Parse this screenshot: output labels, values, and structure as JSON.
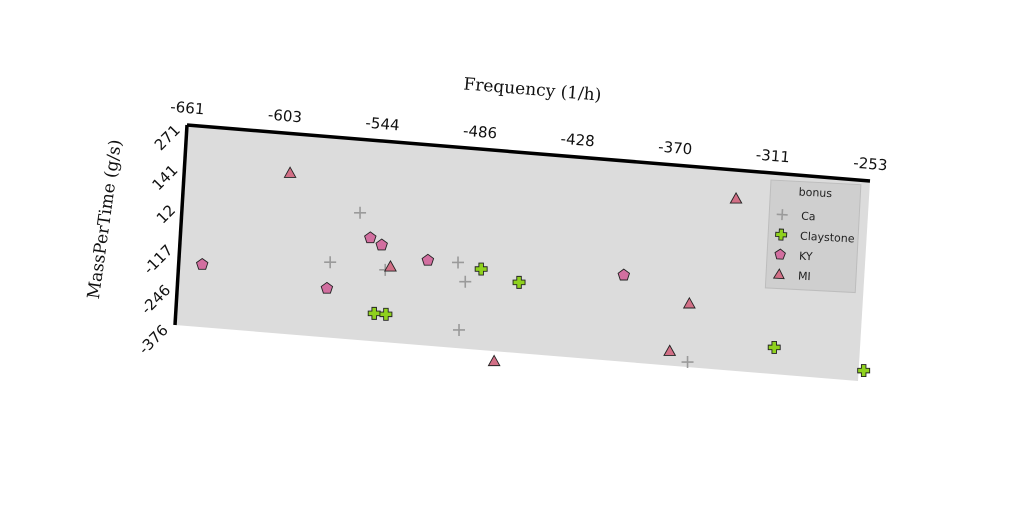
{
  "chart_data": {
    "type": "scatter",
    "xlabel": "Frequency (1/h)",
    "ylabel": "MassPerTime (g/s)",
    "x_ticks": [
      "-661",
      "-603",
      "-544",
      "-486",
      "-428",
      "-370",
      "-311",
      "-253"
    ],
    "y_ticks": [
      "271",
      "141",
      "12",
      "-117",
      "-246",
      "-376"
    ],
    "xlim": [
      -661,
      -253
    ],
    "ylim": [
      -376,
      271
    ],
    "grid": false,
    "legend": {
      "title": "bonus",
      "placement": "upper-right"
    },
    "series": [
      {
        "name": "Ca",
        "marker": "plus",
        "color": "#9a9a9a",
        "points": [
          [
            -555,
            34
          ],
          [
            -571,
            -133
          ],
          [
            -538,
            -143
          ],
          [
            -495,
            -100
          ],
          [
            -490,
            -160
          ],
          [
            -492,
            -317
          ],
          [
            -355,
            -360
          ]
        ]
      },
      {
        "name": "Claystone",
        "marker": "thick-plus",
        "color": "#8fd11e",
        "points": [
          [
            -543,
            -286
          ],
          [
            -536,
            -286
          ],
          [
            -481,
            -115
          ],
          [
            -458,
            -148
          ],
          [
            -304,
            -290
          ],
          [
            -250,
            -341
          ]
        ]
      },
      {
        "name": "KY",
        "marker": "pentagon",
        "color": "#d26fa0",
        "points": [
          [
            -647,
            -174
          ],
          [
            -572,
            -218
          ],
          [
            -548,
            -44
          ],
          [
            -541,
            -64
          ],
          [
            -513,
            -101
          ],
          [
            -396,
            -97
          ]
        ]
      },
      {
        "name": "MI",
        "marker": "triangle",
        "color": "#d26f86",
        "points": [
          [
            -598,
            143
          ],
          [
            -535,
            -132
          ],
          [
            -470,
            -409
          ],
          [
            -366,
            -330
          ],
          [
            -356,
            -172
          ],
          [
            -332,
            178
          ]
        ]
      }
    ]
  }
}
